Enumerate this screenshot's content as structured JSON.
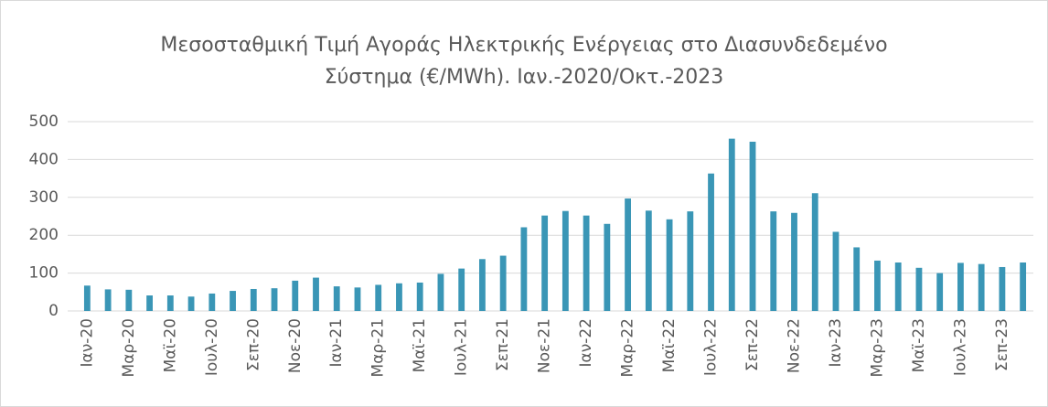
{
  "chart_data": {
    "type": "bar",
    "title": [
      "Μεσοσταθμική Τιμή Αγοράς Ηλεκτρικής Ενέργειας στο Διασυνδεδεμένο",
      "Σύστημα (€/MWh).  Ιαν.-2020/Οκτ.-2023"
    ],
    "categories": [
      "Ιαν-20",
      null,
      "Μαρ-20",
      null,
      "Μαϊ-20",
      null,
      "Ιουλ-20",
      null,
      "Σεπ-20",
      null,
      "Νοε-20",
      null,
      "Ιαν-21",
      null,
      "Μαρ-21",
      null,
      "Μαϊ-21",
      null,
      "Ιουλ-21",
      null,
      "Σεπ-21",
      null,
      "Νοε-21",
      null,
      "Ιαν-22",
      null,
      "Μαρ-22",
      null,
      "Μαϊ-22",
      null,
      "Ιουλ-22",
      null,
      "Σεπ-22",
      null,
      "Νοε-22",
      null,
      "Ιαν-23",
      null,
      "Μαρ-23",
      null,
      "Μαϊ-23",
      null,
      "Ιουλ-23",
      null,
      "Σεπ-23",
      null
    ],
    "values": [
      67,
      57,
      56,
      41,
      41,
      38,
      46,
      53,
      58,
      60,
      80,
      88,
      65,
      62,
      69,
      73,
      75,
      98,
      112,
      137,
      146,
      221,
      252,
      264,
      252,
      230,
      297,
      265,
      242,
      263,
      363,
      455,
      447,
      263,
      259,
      311,
      209,
      168,
      133,
      128,
      114,
      100,
      127,
      124,
      116,
      128
    ],
    "color": "#3a96b6",
    "ylim": [
      0,
      500
    ],
    "yticks": [
      0,
      100,
      200,
      300,
      400,
      500
    ],
    "grid": true
  }
}
